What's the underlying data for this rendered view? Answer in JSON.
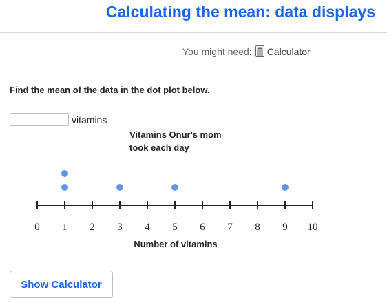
{
  "header": {
    "title": "Calculating the mean: data displays"
  },
  "tools": {
    "prefix": "You might need:",
    "calculator_label": "Calculator"
  },
  "question": {
    "prompt": "Find the mean of the data in the dot plot below.",
    "answer_value": "",
    "unit": "vitamins"
  },
  "chart_data": {
    "type": "scatter",
    "title": "Vitamins Onur's mom took each day",
    "xlabel": "Number of vitamins",
    "ylabel": "",
    "xlim": [
      0,
      10
    ],
    "ticks": [
      0,
      1,
      2,
      3,
      4,
      5,
      6,
      7,
      8,
      9,
      10
    ],
    "dots": [
      {
        "x": 1,
        "count": 2
      },
      {
        "x": 3,
        "count": 1
      },
      {
        "x": 5,
        "count": 1
      },
      {
        "x": 9,
        "count": 1
      }
    ],
    "dot_color": "#6495ed"
  },
  "footer": {
    "show_calculator_label": "Show Calculator"
  }
}
